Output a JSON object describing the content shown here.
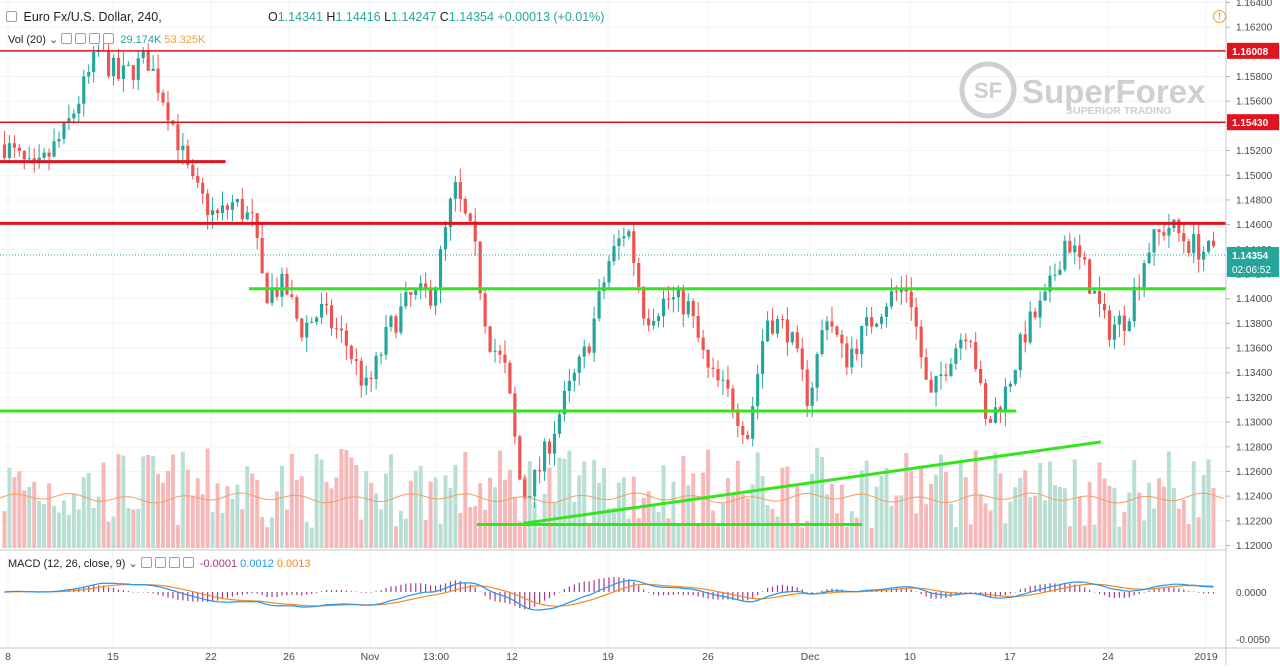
{
  "header": {
    "symbol": "Euro Fx/U.S. Dollar, 240,",
    "o_label": "O",
    "o_value": "1.14341",
    "h_label": "H",
    "h_value": "1.14416",
    "l_label": "L",
    "l_value": "1.14247",
    "c_label": "C",
    "c_value": "1.14354",
    "change": "+0.00013 (+0.01%)"
  },
  "vol_legend": {
    "label": "Vol (20)",
    "value1": "29.174K",
    "value2": "53.325K"
  },
  "macd_legend": {
    "label": "MACD (12, 26, close, 9)",
    "hist": "-0.0001",
    "macd": "0.0012",
    "signal": "0.0013"
  },
  "watermark": {
    "brand": "SuperForex",
    "tagline": "SUPERIOR TRADING",
    "logo_text": "SF"
  },
  "price_tag": {
    "price": "1.14354",
    "countdown": "02:06:52"
  },
  "colors": {
    "up": "#26a69a",
    "down": "#ef5350",
    "vol_up": "#b9dfd4",
    "vol_down": "#f6b8b8",
    "hline_red": "#e0141e",
    "trend_green": "#35e51c",
    "macd": "#2196f3",
    "signal": "#f08a24",
    "hist": "#a03c8c"
  },
  "chart_data": {
    "type": "candlestick",
    "title": "Euro Fx/U.S. Dollar, 240",
    "x_tick_labels": [
      "8",
      "15",
      "22",
      "26",
      "Nov",
      "13:00",
      "12",
      "19",
      "26",
      "Dec",
      "10",
      "17",
      "24",
      "2019"
    ],
    "y_ticks": [
      "1.16400",
      "1.16200",
      "1.16000",
      "1.15800",
      "1.15600",
      "1.15400",
      "1.15200",
      "1.15000",
      "1.14800",
      "1.14600",
      "1.14400",
      "1.14200",
      "1.14000",
      "1.13800",
      "1.13600",
      "1.13400",
      "1.13200",
      "1.13000",
      "1.12800",
      "1.12600",
      "1.12400",
      "1.12200",
      "1.12000"
    ],
    "ylim": [
      1.1198,
      1.1642
    ],
    "price_labels": [
      {
        "text": "1.16008",
        "price": 1.16008,
        "color": "#e0141e"
      },
      {
        "text": "1.15430",
        "price": 1.1543,
        "color": "#e0141e"
      }
    ],
    "horizontal_lines": [
      {
        "price": 1.16008,
        "x_from": 0,
        "x_to": 1,
        "color": "red",
        "weight": "thin"
      },
      {
        "price": 1.1543,
        "x_from": 0,
        "x_to": 1,
        "color": "red",
        "weight": "thin"
      },
      {
        "price": 1.1511,
        "x_from": 0,
        "x_to": 0.184,
        "color": "red",
        "weight": "thick"
      },
      {
        "price": 1.1461,
        "x_from": 0,
        "x_to": 1,
        "color": "red",
        "weight": "thick"
      },
      {
        "price": 1.1408,
        "x_from": 0.203,
        "x_to": 1,
        "color": "green",
        "weight": "thick"
      },
      {
        "price": 1.1309,
        "x_from": 0,
        "x_to": 0.829,
        "color": "green",
        "weight": "thick"
      },
      {
        "price": 1.1217,
        "x_from": 0.389,
        "x_to": 0.703,
        "color": "green",
        "weight": "thick"
      }
    ],
    "trend_lines": [
      {
        "from": {
          "x": 0.427,
          "price": 1.1218
        },
        "to": {
          "x": 0.898,
          "price": 1.1284
        },
        "color": "green"
      }
    ],
    "path_points": [
      [
        0.0,
        1.1525
      ],
      [
        0.025,
        1.15
      ],
      [
        0.05,
        1.1535
      ],
      [
        0.078,
        1.16
      ],
      [
        0.095,
        1.1578
      ],
      [
        0.118,
        1.1595
      ],
      [
        0.135,
        1.1555
      ],
      [
        0.155,
        1.1492
      ],
      [
        0.175,
        1.1465
      ],
      [
        0.19,
        1.1478
      ],
      [
        0.205,
        1.1462
      ],
      [
        0.215,
        1.1405
      ],
      [
        0.232,
        1.141
      ],
      [
        0.245,
        1.1375
      ],
      [
        0.262,
        1.139
      ],
      [
        0.282,
        1.1365
      ],
      [
        0.3,
        1.1325
      ],
      [
        0.318,
        1.1375
      ],
      [
        0.335,
        1.14
      ],
      [
        0.355,
        1.1405
      ],
      [
        0.372,
        1.149
      ],
      [
        0.388,
        1.1445
      ],
      [
        0.4,
        1.137
      ],
      [
        0.415,
        1.134
      ],
      [
        0.428,
        1.124
      ],
      [
        0.44,
        1.1255
      ],
      [
        0.46,
        1.131
      ],
      [
        0.482,
        1.136
      ],
      [
        0.5,
        1.143
      ],
      [
        0.515,
        1.146
      ],
      [
        0.53,
        1.1385
      ],
      [
        0.548,
        1.14
      ],
      [
        0.565,
        1.1395
      ],
      [
        0.582,
        1.134
      ],
      [
        0.6,
        1.132
      ],
      [
        0.615,
        1.129
      ],
      [
        0.63,
        1.1385
      ],
      [
        0.648,
        1.1375
      ],
      [
        0.665,
        1.1318
      ],
      [
        0.68,
        1.139
      ],
      [
        0.695,
        1.135
      ],
      [
        0.712,
        1.1375
      ],
      [
        0.73,
        1.14
      ],
      [
        0.748,
        1.141
      ],
      [
        0.765,
        1.1315
      ],
      [
        0.782,
        1.1355
      ],
      [
        0.798,
        1.138
      ],
      [
        0.812,
        1.1295
      ],
      [
        0.828,
        1.1325
      ],
      [
        0.845,
        1.1375
      ],
      [
        0.862,
        1.14
      ],
      [
        0.878,
        1.145
      ],
      [
        0.895,
        1.142
      ],
      [
        0.912,
        1.1375
      ],
      [
        0.928,
        1.1385
      ],
      [
        0.945,
        1.144
      ],
      [
        0.962,
        1.146
      ],
      [
        0.98,
        1.1445
      ],
      [
        1.0,
        1.1435
      ]
    ],
    "volume": {
      "axis": "none",
      "ma_level": 0.32
    },
    "macd": {
      "zero_label": "0.0000",
      "low_label": "-0.0050"
    }
  }
}
